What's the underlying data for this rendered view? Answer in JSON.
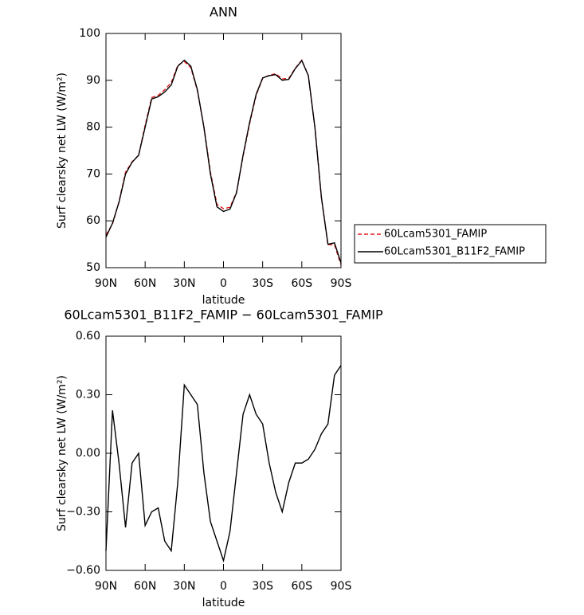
{
  "chart_data": [
    {
      "type": "line",
      "title": "ANN",
      "xlabel": "latitude",
      "ylabel": "Surf clearsky net LW (W/m²)",
      "x": [
        90,
        85,
        80,
        75,
        70,
        65,
        60,
        55,
        50,
        45,
        40,
        35,
        30,
        25,
        20,
        15,
        10,
        5,
        0,
        -5,
        -10,
        -15,
        -20,
        -25,
        -30,
        -35,
        -40,
        -45,
        -50,
        -55,
        -60,
        -65,
        -70,
        -75,
        -80,
        -85,
        -90
      ],
      "series": [
        {
          "name": "60Lcam5301_FAMIP",
          "color": "#e41a1c",
          "linestyle": "dashed",
          "values": [
            57.0,
            59.3,
            64.1,
            70.4,
            72.6,
            74.0,
            80.4,
            86.3,
            86.8,
            88.0,
            89.5,
            93.2,
            94.0,
            92.7,
            87.8,
            80.1,
            70.4,
            63.5,
            62.6,
            62.9,
            66.1,
            73.8,
            80.7,
            86.8,
            90.4,
            91.1,
            91.4,
            90.3,
            90.4,
            92.6,
            94.3,
            91.0,
            80.0,
            64.9,
            54.9,
            54.9,
            50.6
          ]
        },
        {
          "name": "60Lcam5301_B11F2_FAMIP",
          "color": "#000000",
          "linestyle": "solid",
          "values": [
            56.5,
            59.5,
            64.0,
            70.0,
            72.5,
            74.0,
            80.0,
            86.0,
            86.5,
            87.5,
            89.0,
            93.0,
            94.3,
            93.0,
            88.0,
            80.0,
            70.0,
            63.0,
            62.0,
            62.5,
            66.0,
            74.0,
            81.0,
            87.0,
            90.5,
            91.0,
            91.2,
            90.0,
            90.2,
            92.5,
            94.2,
            91.0,
            80.0,
            65.0,
            55.0,
            55.3,
            51.0
          ]
        }
      ],
      "xlim": [
        90,
        -90
      ],
      "xticks": [
        {
          "value": 90,
          "label": "90N"
        },
        {
          "value": 60,
          "label": "60N"
        },
        {
          "value": 30,
          "label": "30N"
        },
        0,
        {
          "value": -30,
          "label": "30S"
        },
        {
          "value": -60,
          "label": "60S"
        },
        {
          "value": -90,
          "label": "90S"
        }
      ],
      "ylim": [
        50,
        100
      ],
      "yticks": [
        50,
        60,
        70,
        80,
        90,
        100
      ],
      "legend": "right"
    },
    {
      "type": "line",
      "title": "60Lcam5301_B11F2_FAMIP − 60Lcam5301_FAMIP",
      "xlabel": "latitude",
      "ylabel": "Surf clearsky net LW (W/m²)",
      "x": [
        90,
        85,
        80,
        75,
        70,
        65,
        60,
        55,
        50,
        45,
        40,
        35,
        30,
        25,
        20,
        15,
        10,
        5,
        0,
        -5,
        -10,
        -15,
        -20,
        -25,
        -30,
        -35,
        -40,
        -45,
        -50,
        -55,
        -60,
        -65,
        -70,
        -75,
        -80,
        -85,
        -90
      ],
      "series": [
        {
          "color": "#000000",
          "linestyle": "solid",
          "values": [
            -0.5,
            0.22,
            -0.05,
            -0.38,
            -0.05,
            0.0,
            -0.37,
            -0.3,
            -0.28,
            -0.45,
            -0.5,
            -0.15,
            0.35,
            0.3,
            0.25,
            -0.1,
            -0.35,
            -0.45,
            -0.55,
            -0.4,
            -0.1,
            0.2,
            0.3,
            0.2,
            0.15,
            -0.05,
            -0.2,
            -0.3,
            -0.15,
            -0.05,
            -0.05,
            -0.03,
            0.02,
            0.1,
            0.15,
            0.4,
            0.45
          ]
        }
      ],
      "xlim": [
        90,
        -90
      ],
      "xticks": [
        {
          "value": 90,
          "label": "90N"
        },
        {
          "value": 60,
          "label": "60N"
        },
        {
          "value": 30,
          "label": "30N"
        },
        0,
        {
          "value": -30,
          "label": "30S"
        },
        {
          "value": -60,
          "label": "60S"
        },
        {
          "value": -90,
          "label": "90S"
        }
      ],
      "ylim": [
        -0.6,
        0.6
      ],
      "yticks": [
        {
          "value": -0.6,
          "label": "−0.60"
        },
        {
          "value": -0.3,
          "label": "−0.30"
        },
        {
          "value": 0,
          "label": "0.00"
        },
        {
          "value": 0.3,
          "label": "0.30"
        },
        {
          "value": 0.6,
          "label": "0.60"
        }
      ]
    }
  ]
}
